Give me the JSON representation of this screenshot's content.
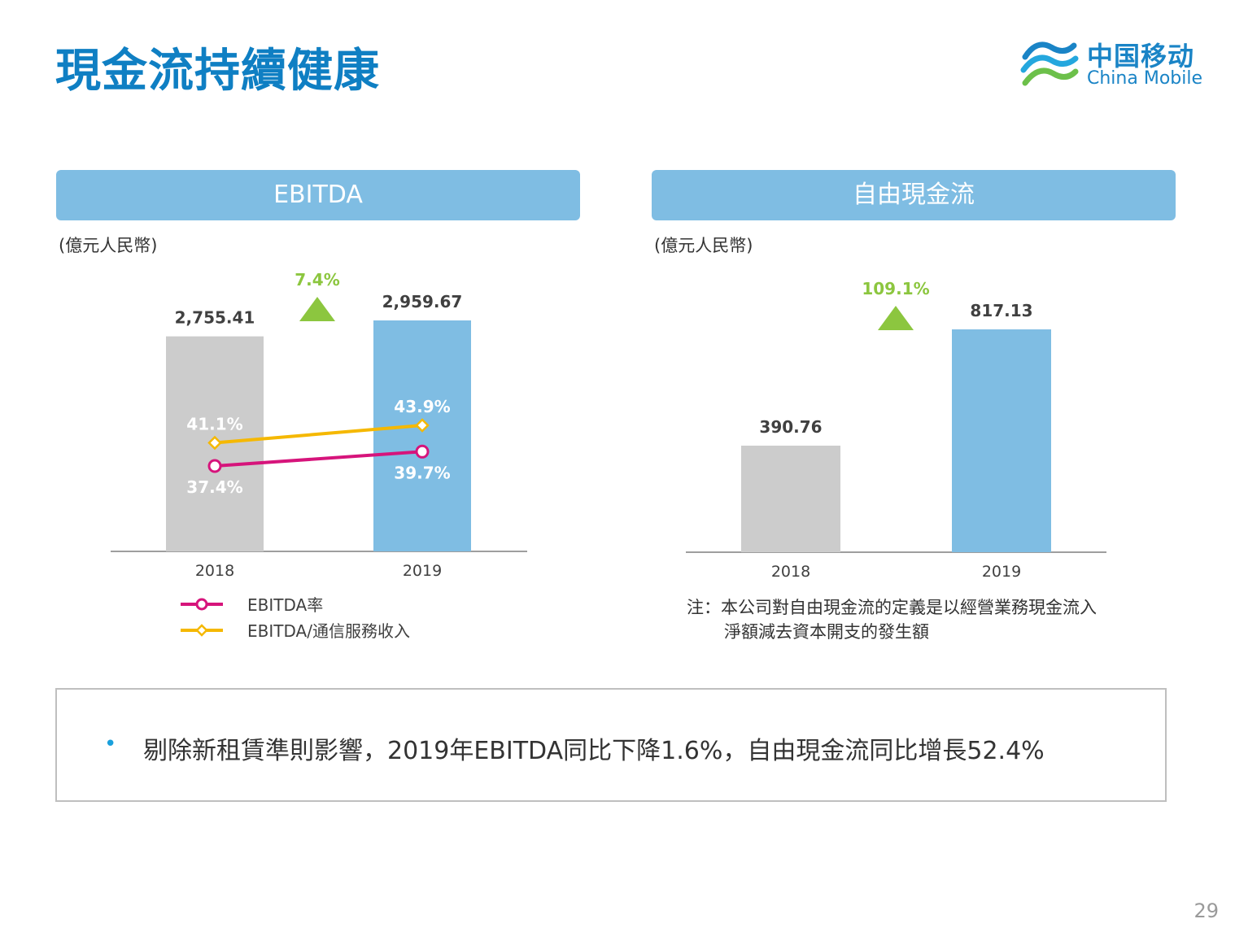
{
  "title": "現金流持續健康",
  "logo": {
    "cn": "中国移动",
    "en": "China Mobile"
  },
  "page_number": "29",
  "chart_data": [
    {
      "type": "bar",
      "title": "EBITDA",
      "unit": "(億元人民幣)",
      "categories": [
        "2018",
        "2019"
      ],
      "values": [
        2755.41,
        2959.67
      ],
      "value_labels": [
        "2,755.41",
        "2,959.67"
      ],
      "bar_colors": [
        "#cccccc",
        "#7fbde3"
      ],
      "growth_label": "7.4%",
      "growth_color": "#8cc63f",
      "lines": [
        {
          "name": "EBITDA率",
          "values": [
            37.4,
            39.7
          ],
          "labels": [
            "37.4%",
            "39.7%"
          ],
          "color": "#d6147b",
          "marker": "circle"
        },
        {
          "name": "EBITDA/通信服務收入",
          "values": [
            41.1,
            43.9
          ],
          "labels": [
            "41.1%",
            "43.9%"
          ],
          "color": "#f5b800",
          "marker": "diamond"
        }
      ]
    },
    {
      "type": "bar",
      "title": "自由現金流",
      "unit": "(億元人民幣)",
      "categories": [
        "2018",
        "2019"
      ],
      "values": [
        390.76,
        817.13
      ],
      "value_labels": [
        "390.76",
        "817.13"
      ],
      "bar_colors": [
        "#cccccc",
        "#7fbde3"
      ],
      "growth_label": "109.1%",
      "growth_color": "#8cc63f"
    }
  ],
  "note": {
    "line1": "注：本公司對自由現金流的定義是以經營業務現金流入",
    "line2": "淨額減去資本開支的發生額"
  },
  "summary": {
    "bullet": "•",
    "text": "剔除新租賃準則影響，2019年EBITDA同比下降1.6%，自由現金流同比增長52.4%"
  }
}
